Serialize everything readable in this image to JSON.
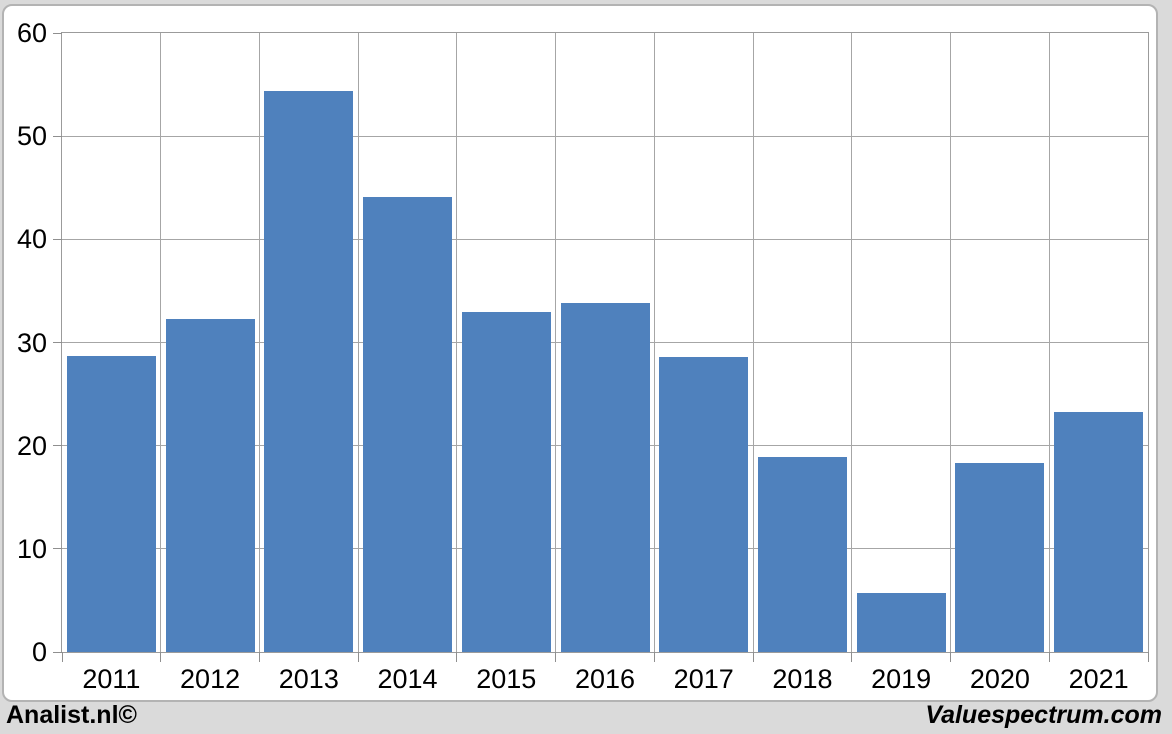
{
  "page": {
    "background": "#dadada",
    "panel_background": "#ffffff",
    "panel_border": "#b3b3b3",
    "text_color": "#000000"
  },
  "footer": {
    "left_text": "Analist.nl©",
    "right_text": "Valuespectrum.com"
  },
  "chart_data": {
    "type": "bar",
    "title": "",
    "categories": [
      "2011",
      "2012",
      "2013",
      "2014",
      "2015",
      "2016",
      "2017",
      "2018",
      "2019",
      "2020",
      "2021"
    ],
    "values": [
      28.7,
      32.3,
      54.4,
      44.1,
      33.0,
      33.8,
      28.6,
      18.9,
      5.7,
      18.3,
      23.3
    ],
    "xlabel": "",
    "ylabel": "",
    "ylim": [
      0,
      60
    ],
    "ytick_interval": 10,
    "yticks": [
      "0",
      "10",
      "20",
      "30",
      "40",
      "50",
      "60"
    ],
    "bar_color": "#4f81bd",
    "gridline_color": "#a6a6a6",
    "axis_color": "#8f8f8f",
    "grid": "horizontal-and-vertical",
    "legend_position": "none"
  }
}
